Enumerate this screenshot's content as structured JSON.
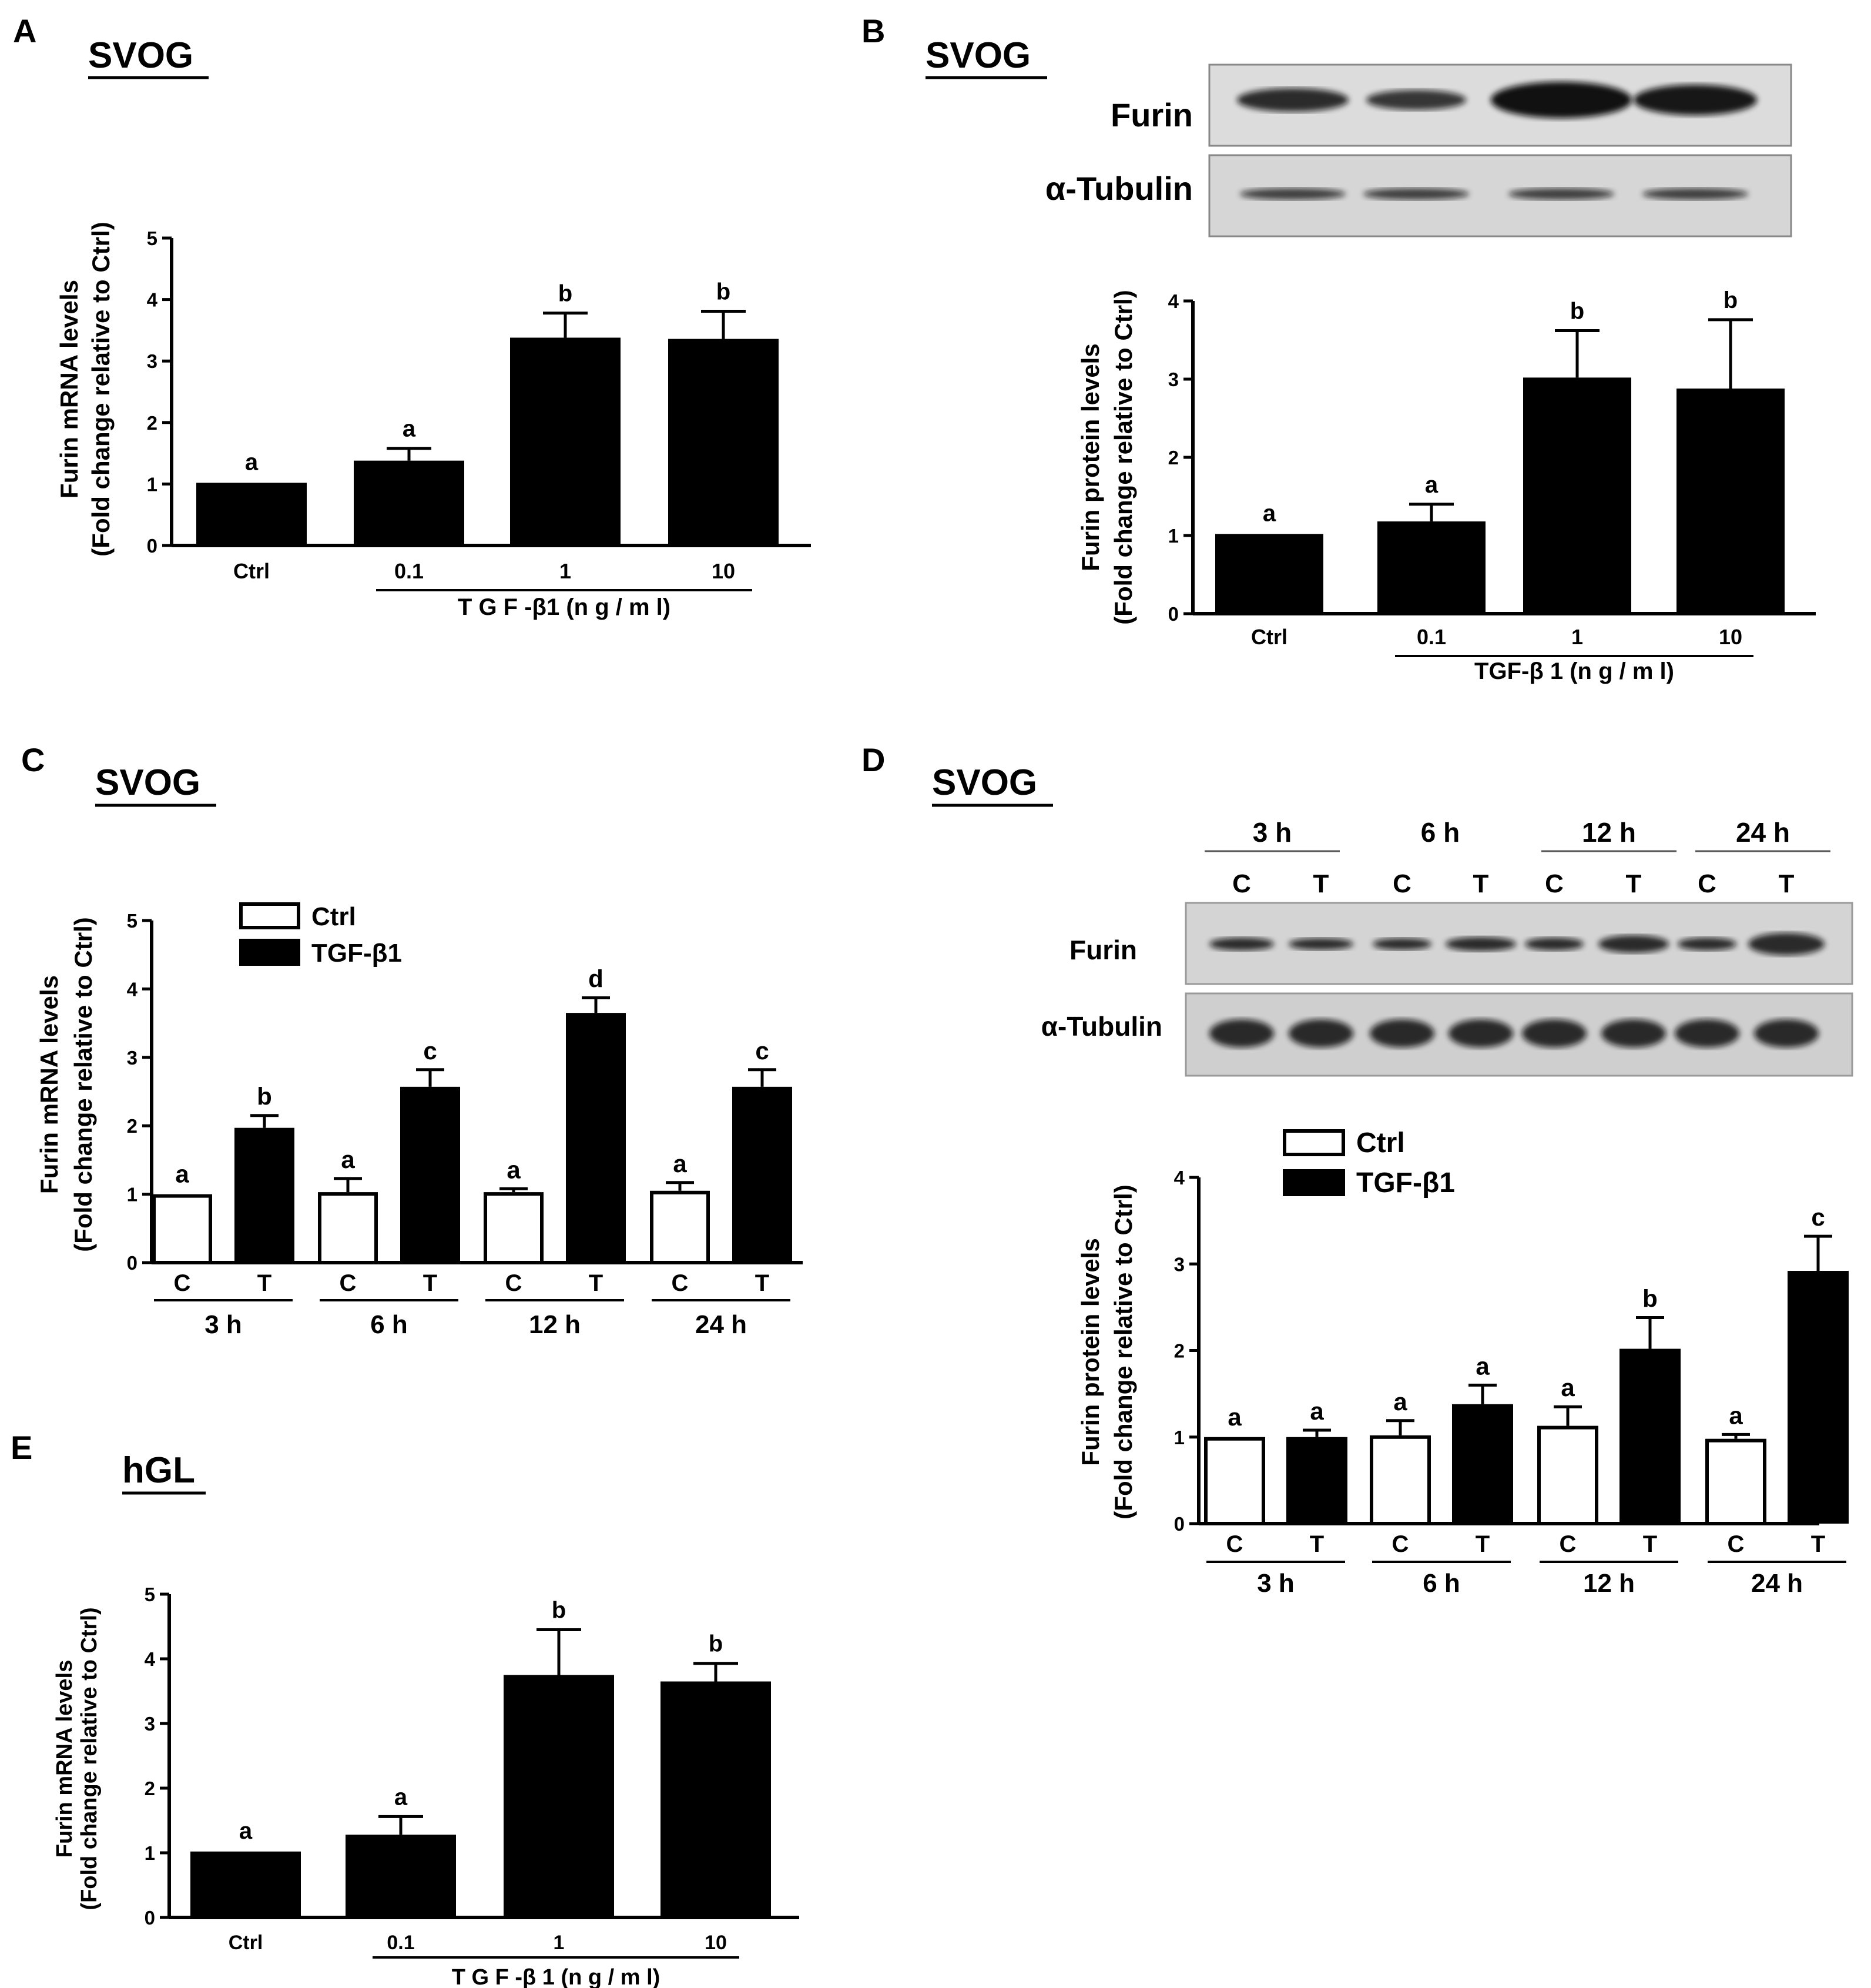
{
  "panels": [
    {
      "letter": "A",
      "cell_line": "SVOG",
      "chart_data": {
        "type": "bar",
        "ylabel_line1": "Furin mRNA levels",
        "ylabel_line2": "(Fold change relative to Ctrl)",
        "ylim": [
          0,
          5
        ],
        "yticks": [
          "0",
          "1",
          "2",
          "3",
          "4",
          "5"
        ],
        "categories": [
          "Ctrl",
          "0.1",
          "1",
          "10"
        ],
        "values": [
          1.02,
          1.38,
          3.38,
          3.36
        ],
        "errors": [
          0,
          0.2,
          0.4,
          0.45
        ],
        "letters": [
          "a",
          "a",
          "b",
          "b"
        ],
        "treatment_label": "T G F -β1  (n g / m l)"
      }
    },
    {
      "letter": "B",
      "cell_line": "SVOG",
      "blot": {
        "rows": [
          "Furin",
          "α-Tubulin"
        ]
      },
      "chart_data": {
        "type": "bar",
        "ylabel_line1": "Furin protein levels",
        "ylabel_line2": "(Fold change relative to Ctrl)",
        "ylim": [
          0,
          4
        ],
        "yticks": [
          "0",
          "1",
          "2",
          "3",
          "4"
        ],
        "categories": [
          "Ctrl",
          "0.1",
          "1",
          "10"
        ],
        "values": [
          1.02,
          1.18,
          3.02,
          2.88
        ],
        "errors": [
          0,
          0.22,
          0.6,
          0.88
        ],
        "letters": [
          "a",
          "a",
          "b",
          "b"
        ],
        "treatment_label": "TGF-β 1  (n g / m l)"
      }
    },
    {
      "letter": "C",
      "cell_line": "SVOG",
      "chart_data": {
        "type": "bar",
        "ylabel_line1": "Furin mRNA levels",
        "ylabel_line2": "(Fold change relative to Ctrl)",
        "ylim": [
          0,
          5
        ],
        "yticks": [
          "0",
          "1",
          "2",
          "3",
          "4",
          "5"
        ],
        "groups": [
          "3  h",
          "6  h",
          "12  h",
          "24  h"
        ],
        "sublabels": [
          "C",
          "T"
        ],
        "series": [
          {
            "name": "Ctrl",
            "values": [
              1.0,
              1.03,
              1.03,
              1.05
            ],
            "errors": [
              0,
              0.2,
              0.05,
              0.12
            ],
            "letters": [
              "a",
              "a",
              "a",
              "a"
            ]
          },
          {
            "name": "TGF-β1",
            "values": [
              1.97,
              2.57,
              3.65,
              2.57
            ],
            "errors": [
              0.18,
              0.25,
              0.22,
              0.25
            ],
            "letters": [
              "b",
              "c",
              "d",
              "c"
            ]
          }
        ]
      }
    },
    {
      "letter": "D",
      "cell_line": "SVOG",
      "blot": {
        "times": [
          "3 h",
          "6 h",
          "12 h",
          "24 h"
        ],
        "lanes": [
          "C",
          "T",
          "C",
          "T",
          "C",
          "T",
          "C",
          "T"
        ],
        "rows": [
          "Furin",
          "α-Tubulin"
        ]
      },
      "chart_data": {
        "type": "bar",
        "ylabel_line1": "Furin protein levels",
        "ylabel_line2": "(Fold change relative to Ctrl)",
        "ylim": [
          0,
          4
        ],
        "yticks": [
          "0",
          "1",
          "2",
          "3",
          "4"
        ],
        "groups": [
          "3  h",
          "6  h",
          "12  h",
          "24  h"
        ],
        "sublabels": [
          "C",
          "T"
        ],
        "series": [
          {
            "name": "Ctrl",
            "values": [
              1.0,
              1.02,
              1.13,
              0.98
            ],
            "errors": [
              0,
              0.17,
              0.22,
              0.05
            ],
            "letters": [
              "a",
              "a",
              "a",
              "a"
            ]
          },
          {
            "name": "TGF-β1",
            "values": [
              1.0,
              1.38,
              2.02,
              2.92
            ],
            "errors": [
              0.08,
              0.22,
              0.36,
              0.4
            ],
            "letters": [
              "a",
              "a",
              "b",
              "c"
            ]
          }
        ]
      }
    },
    {
      "letter": "E",
      "cell_line": "hGL",
      "chart_data": {
        "type": "bar",
        "ylabel_line1": "Furin mRNA levels",
        "ylabel_line2": "(Fold change relative to Ctrl)",
        "ylim": [
          0,
          5
        ],
        "yticks": [
          "0",
          "1",
          "2",
          "3",
          "4",
          "5"
        ],
        "categories": [
          "Ctrl",
          "0.1",
          "1",
          "10"
        ],
        "values": [
          1.02,
          1.28,
          3.75,
          3.65
        ],
        "errors": [
          0,
          0.28,
          0.7,
          0.28
        ],
        "letters": [
          "a",
          "a",
          "b",
          "b"
        ],
        "treatment_label": "T G F -β 1  (n g / m l)"
      }
    }
  ]
}
